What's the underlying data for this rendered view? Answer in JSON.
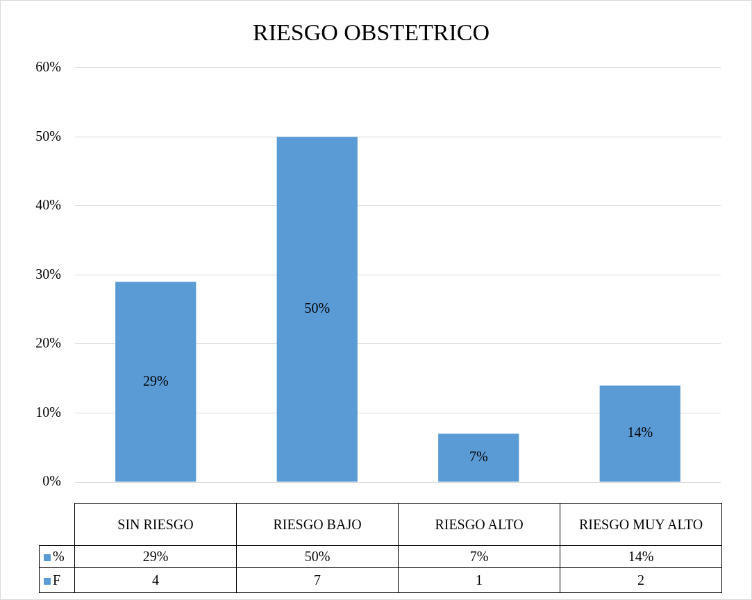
{
  "chart_data": {
    "type": "bar",
    "title": "RIESGO OBSTETRICO",
    "categories": [
      "SIN RIESGO",
      "RIESGO BAJO",
      "RIESGO ALTO",
      "RIESGO MUY ALTO"
    ],
    "series": [
      {
        "name": "%",
        "color": "#5b9bd5",
        "values": [
          29,
          50,
          7,
          14
        ],
        "value_labels": [
          "29%",
          "50%",
          "7%",
          "14%"
        ]
      }
    ],
    "annotations": [
      "F",
      "4",
      "7",
      "1",
      "2"
    ],
    "ylim": [
      0,
      60
    ],
    "yticks": [
      {
        "value": 0,
        "label": "0%"
      },
      {
        "value": 10,
        "label": "10%"
      },
      {
        "value": 20,
        "label": "20%"
      },
      {
        "value": 30,
        "label": "30%"
      },
      {
        "value": 40,
        "label": "40%"
      },
      {
        "value": 50,
        "label": "50%"
      },
      {
        "value": 60,
        "label": "60%"
      }
    ],
    "grid": "y",
    "legend": "bottom"
  }
}
